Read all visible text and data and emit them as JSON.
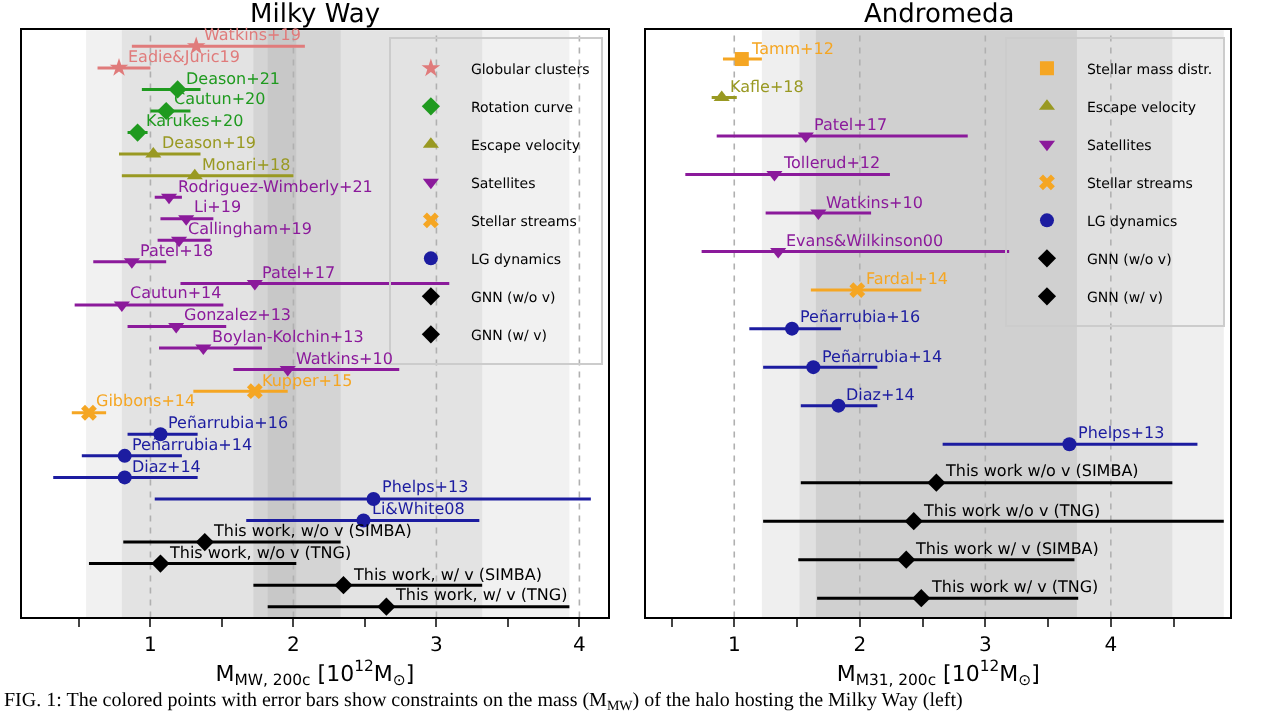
{
  "chart_data": [
    {
      "type": "scatter",
      "orientation": "horizontal",
      "title": "Milky Way",
      "xlabel": "M$_{MW, 200c}$ [10$^{12}$M$_{⊙}$]",
      "categories": [
        null,
        null,
        null,
        null,
        null,
        null,
        null,
        null,
        null,
        null,
        null,
        null,
        null,
        null,
        null,
        null,
        null,
        null,
        null,
        null,
        null,
        null,
        null,
        null,
        null,
        null,
        null
      ],
      "series": [
        {
          "name": "Globular clusters",
          "color": "#e07b7b",
          "marker": "star",
          "values": [
            1.32,
            0.78,
            null,
            null,
            null,
            null,
            null,
            null,
            null,
            null,
            null,
            null,
            null,
            null,
            null,
            null,
            null,
            null,
            null,
            null,
            null,
            null,
            null,
            null,
            null,
            null,
            null
          ],
          "errors": [
            [
              0.87,
              2.08
            ],
            [
              0.63,
              1.0
            ],
            null,
            null,
            null,
            null,
            null,
            null,
            null,
            null,
            null,
            null,
            null,
            null,
            null,
            null,
            null,
            null,
            null,
            null,
            null,
            null,
            null,
            null,
            null,
            null,
            null
          ]
        },
        {
          "name": "Rotation curve",
          "color": "#1f9a1f",
          "marker": "diamond",
          "values": [
            null,
            null,
            1.19,
            1.11,
            0.91,
            null,
            null,
            null,
            null,
            null,
            null,
            null,
            null,
            null,
            null,
            null,
            null,
            null,
            null,
            null,
            null,
            null,
            null,
            null,
            null,
            null,
            null
          ],
          "errors": [
            null,
            null,
            [
              0.94,
              1.35
            ],
            [
              1.0,
              1.28
            ],
            [
              0.84,
              0.98
            ],
            null,
            null,
            null,
            null,
            null,
            null,
            null,
            null,
            null,
            null,
            null,
            null,
            null,
            null,
            null,
            null,
            null,
            null,
            null,
            null,
            null,
            null
          ]
        },
        {
          "name": "Escape velocity",
          "color": "#999922",
          "marker": "triangle",
          "values": [
            null,
            null,
            null,
            null,
            null,
            1.02,
            1.31,
            null,
            null,
            null,
            null,
            null,
            null,
            null,
            null,
            null,
            null,
            null,
            null,
            null,
            null,
            null,
            null,
            null,
            null,
            null,
            null
          ],
          "errors": [
            null,
            null,
            null,
            null,
            null,
            [
              0.78,
              1.35
            ],
            [
              0.8,
              2.0
            ],
            null,
            null,
            null,
            null,
            null,
            null,
            null,
            null,
            null,
            null,
            null,
            null,
            null,
            null,
            null,
            null,
            null,
            null,
            null,
            null
          ]
        },
        {
          "name": "Satellites",
          "color": "#8b1a9b",
          "marker": "triangle-down",
          "values": [
            null,
            null,
            null,
            null,
            null,
            null,
            null,
            1.13,
            1.25,
            1.2,
            0.87,
            1.73,
            0.8,
            1.18,
            1.37,
            1.96,
            null,
            null,
            null,
            null,
            null,
            null,
            null,
            null,
            null,
            null,
            null
          ],
          "errors": [
            null,
            null,
            null,
            null,
            null,
            null,
            null,
            [
              1.03,
              1.22
            ],
            [
              1.07,
              1.44
            ],
            [
              1.05,
              1.42
            ],
            [
              0.6,
              1.11
            ],
            [
              1.21,
              3.09
            ],
            [
              0.47,
              1.51
            ],
            [
              0.84,
              1.53
            ],
            [
              1.06,
              1.78
            ],
            [
              1.58,
              2.74
            ],
            null,
            null,
            null,
            null,
            null,
            null,
            null,
            null,
            null,
            null,
            null
          ]
        },
        {
          "name": "Stellar streams",
          "color": "#f5a623",
          "marker": "cross",
          "values": [
            null,
            null,
            null,
            null,
            null,
            null,
            null,
            null,
            null,
            null,
            null,
            null,
            null,
            null,
            null,
            null,
            1.73,
            0.57,
            null,
            null,
            null,
            null,
            null,
            null,
            null,
            null,
            null
          ],
          "errors": [
            null,
            null,
            null,
            null,
            null,
            null,
            null,
            null,
            null,
            null,
            null,
            null,
            null,
            null,
            null,
            null,
            [
              1.3,
              1.96
            ],
            [
              0.45,
              0.69
            ],
            null,
            null,
            null,
            null,
            null,
            null,
            null,
            null,
            null
          ]
        },
        {
          "name": "LG dynamics",
          "color": "#1c1ca0",
          "marker": "circle",
          "values": [
            null,
            null,
            null,
            null,
            null,
            null,
            null,
            null,
            null,
            null,
            null,
            null,
            null,
            null,
            null,
            null,
            null,
            null,
            1.07,
            0.82,
            0.82,
            2.56,
            2.49,
            null,
            null,
            null,
            null
          ],
          "errors": [
            null,
            null,
            null,
            null,
            null,
            null,
            null,
            null,
            null,
            null,
            null,
            null,
            null,
            null,
            null,
            null,
            null,
            null,
            [
              0.84,
              1.33
            ],
            [
              0.52,
              1.22
            ],
            [
              0.32,
              1.33
            ],
            [
              1.03,
              4.08
            ],
            [
              1.67,
              3.3
            ],
            null,
            null,
            null,
            null
          ]
        },
        {
          "name": "GNN (w/o v)",
          "color": "#000000",
          "marker": "diamond",
          "values": [
            null,
            null,
            null,
            null,
            null,
            null,
            null,
            null,
            null,
            null,
            null,
            null,
            null,
            null,
            null,
            null,
            null,
            null,
            null,
            null,
            null,
            null,
            null,
            1.38,
            1.07,
            null,
            null
          ],
          "errors": [
            null,
            null,
            null,
            null,
            null,
            null,
            null,
            null,
            null,
            null,
            null,
            null,
            null,
            null,
            null,
            null,
            null,
            null,
            null,
            null,
            null,
            null,
            null,
            [
              0.81,
              2.33
            ],
            [
              0.57,
              2.02
            ],
            null,
            null
          ]
        },
        {
          "name": "GNN (w/ v)",
          "color": "#000000",
          "marker": "diamond",
          "values": [
            null,
            null,
            null,
            null,
            null,
            null,
            null,
            null,
            null,
            null,
            null,
            null,
            null,
            null,
            null,
            null,
            null,
            null,
            null,
            null,
            null,
            null,
            null,
            null,
            null,
            2.35,
            2.65
          ],
          "errors": [
            null,
            null,
            null,
            null,
            null,
            null,
            null,
            null,
            null,
            null,
            null,
            null,
            null,
            null,
            null,
            null,
            null,
            null,
            null,
            null,
            null,
            null,
            null,
            null,
            null,
            [
              1.72,
              3.32
            ],
            [
              1.82,
              3.93
            ]
          ]
        }
      ],
      "xlim": [
        0.1,
        4.2
      ],
      "xticks": [
        {
          "value": 0.5,
          "label": null
        },
        1,
        {
          "value": 1.5,
          "label": null
        },
        2,
        {
          "value": 2.5,
          "label": null
        },
        3,
        {
          "value": 3.5,
          "label": null
        },
        4
      ],
      "bands": [
        {
          "axis": "x",
          "from": 0.55,
          "to": 3.93,
          "color": "#f1f1f1"
        },
        {
          "axis": "x",
          "from": 0.8,
          "to": 3.32,
          "color": "#e3e3e3"
        },
        {
          "axis": "x",
          "from": 1.72,
          "to": 2.33,
          "color": "#d4d4d4"
        },
        {
          "axis": "x",
          "from": 1.82,
          "to": 2.02,
          "color": "#c8c8c8"
        }
      ],
      "grid": "x",
      "legend": "top right",
      "tick_labels": "x",
      "annotations": [
        {
          "text": "Watkins+19",
          "x": 1.32
        },
        {
          "text": "Eadie&Juric19",
          "x": 0.78
        },
        {
          "text": "Deason+21",
          "x": 1.19
        },
        {
          "text": "Cautun+20",
          "x": 1.11
        },
        {
          "text": "Karukes+20",
          "x": 0.91
        },
        {
          "text": "Deason+19",
          "x": 1.02
        },
        {
          "text": "Monari+18",
          "x": 1.31
        },
        {
          "text": "Rodriguez-Wimberly+21",
          "x": 1.13
        },
        {
          "text": "Li+19",
          "x": 1.25
        },
        {
          "text": "Callingham+19",
          "x": 1.2
        },
        {
          "text": "Patel+18",
          "x": 0.87
        },
        {
          "text": "Patel+17",
          "x": 1.73
        },
        {
          "text": "Cautun+14",
          "x": 0.8
        },
        {
          "text": "Gonzalez+13",
          "x": 1.18
        },
        {
          "text": "Boylan-Kolchin+13",
          "x": 1.37
        },
        {
          "text": "Watkins+10",
          "x": 1.96
        },
        {
          "text": "Kupper+15",
          "x": 1.73
        },
        {
          "text": "Gibbons+14",
          "x": 0.57
        },
        {
          "text": "Peñarrubia+16",
          "x": 1.07
        },
        {
          "text": "Peñarrubia+14",
          "x": 0.82
        },
        {
          "text": "Diaz+14",
          "x": 0.82
        },
        {
          "text": "Phelps+13",
          "x": 2.56
        },
        {
          "text": "Li&White08",
          "x": 2.49
        },
        {
          "text": "This work, w/o v (SIMBA)",
          "x": 1.38
        },
        {
          "text": "This work, w/o v (TNG)",
          "x": 1.07
        },
        {
          "text": "This work, w/ v (SIMBA)",
          "x": 2.35
        },
        {
          "text": "This work, w/ v (TNG)",
          "x": 2.65
        },
        "FIG. 1: The colored points with error bars show constraints on the mass (M$_{MW}$) of the halo hosting the Milky Way (left)"
      ]
    },
    {
      "type": "scatter",
      "orientation": "horizontal",
      "title": "Andromeda",
      "xlabel": "M$_{M31, 200c}$ [10$^{12}$M$_{⊙}$]",
      "categories": [
        null,
        null,
        null,
        null,
        null,
        null,
        null,
        null,
        null,
        null,
        null,
        null,
        null,
        null,
        null
      ],
      "series": [
        {
          "name": "Stellar mass distr.",
          "color": "#f5a623",
          "marker": "square",
          "values": [
            1.06,
            null,
            null,
            null,
            null,
            null,
            null,
            null,
            null,
            null,
            null,
            null,
            null,
            null,
            null
          ],
          "errors": [
            [
              0.91,
              1.22
            ],
            null,
            null,
            null,
            null,
            null,
            null,
            null,
            null,
            null,
            null,
            null,
            null,
            null,
            null
          ]
        },
        {
          "name": "Escape velocity",
          "color": "#999922",
          "marker": "triangle",
          "values": [
            null,
            0.9,
            null,
            null,
            null,
            null,
            null,
            null,
            null,
            null,
            null,
            null,
            null,
            null,
            null
          ],
          "errors": [
            null,
            [
              0.82,
              1.02
            ],
            null,
            null,
            null,
            null,
            null,
            null,
            null,
            null,
            null,
            null,
            null,
            null,
            null
          ]
        },
        {
          "name": "Satellites",
          "color": "#8b1a9b",
          "marker": "triangle-down",
          "values": [
            null,
            null,
            1.57,
            1.32,
            1.67,
            1.35,
            null,
            null,
            null,
            null,
            null,
            null,
            null,
            null,
            null
          ],
          "errors": [
            null,
            null,
            [
              0.86,
              2.86
            ],
            [
              0.61,
              2.24
            ],
            [
              1.25,
              2.09
            ],
            [
              0.74,
              3.19
            ],
            null,
            null,
            null,
            null,
            null,
            null,
            null,
            null,
            null
          ]
        },
        {
          "name": "Stellar streams",
          "color": "#f5a623",
          "marker": "cross",
          "values": [
            null,
            null,
            null,
            null,
            null,
            null,
            1.98,
            null,
            null,
            null,
            null,
            null,
            null,
            null,
            null
          ],
          "errors": [
            null,
            null,
            null,
            null,
            null,
            null,
            [
              1.61,
              2.49
            ],
            null,
            null,
            null,
            null,
            null,
            null,
            null,
            null
          ]
        },
        {
          "name": "LG dynamics",
          "color": "#1c1ca0",
          "marker": "circle",
          "values": [
            null,
            null,
            null,
            null,
            null,
            null,
            null,
            1.46,
            1.63,
            1.83,
            3.67,
            null,
            null,
            null,
            null
          ],
          "errors": [
            null,
            null,
            null,
            null,
            null,
            null,
            null,
            [
              1.12,
              1.85
            ],
            [
              1.23,
              2.14
            ],
            [
              1.53,
              2.14
            ],
            [
              2.66,
              4.69
            ],
            null,
            null,
            null,
            null
          ]
        },
        {
          "name": "GNN (w/o v)",
          "color": "#000000",
          "marker": "diamond",
          "values": [
            null,
            null,
            null,
            null,
            null,
            null,
            null,
            null,
            null,
            null,
            null,
            2.61,
            2.43,
            null,
            null
          ],
          "errors": [
            null,
            null,
            null,
            null,
            null,
            null,
            null,
            null,
            null,
            null,
            null,
            [
              1.53,
              4.49
            ],
            [
              1.23,
              4.9
            ],
            null,
            null
          ]
        },
        {
          "name": "GNN (w/ v)",
          "color": "#000000",
          "marker": "diamond",
          "values": [
            null,
            null,
            null,
            null,
            null,
            null,
            null,
            null,
            null,
            null,
            null,
            null,
            null,
            2.37,
            2.49
          ],
          "errors": [
            null,
            null,
            null,
            null,
            null,
            null,
            null,
            null,
            null,
            null,
            null,
            null,
            null,
            [
              1.51,
              3.71
            ],
            [
              1.66,
              3.74
            ]
          ]
        }
      ],
      "xlim": [
        0.3,
        4.95
      ],
      "xticks": [
        {
          "value": 0.5,
          "label": null
        },
        1,
        {
          "value": 1.5,
          "label": null
        },
        2,
        {
          "value": 2.5,
          "label": null
        },
        3,
        {
          "value": 3.5,
          "label": null
        },
        4,
        {
          "value": 4.5,
          "label": null
        }
      ],
      "bands": [
        {
          "axis": "x",
          "from": 1.22,
          "to": 4.9,
          "color": "#efefef"
        },
        {
          "axis": "x",
          "from": 1.52,
          "to": 4.49,
          "color": "#e0e0e0"
        },
        {
          "axis": "x",
          "from": 1.65,
          "to": 3.73,
          "color": "#d0d0d0"
        }
      ],
      "grid": "x",
      "legend": "top right",
      "tick_labels": "x",
      "annotations": [
        {
          "text": "Tamm+12",
          "x": 1.06
        },
        {
          "text": "Kafle+18",
          "x": 0.9
        },
        {
          "text": "Patel+17",
          "x": 1.57
        },
        {
          "text": "Tollerud+12",
          "x": 1.32
        },
        {
          "text": "Watkins+10",
          "x": 1.67
        },
        {
          "text": "Evans&Wilkinson00",
          "x": 1.35
        },
        {
          "text": "Fardal+14",
          "x": 1.98
        },
        {
          "text": "Peñarrubia+16",
          "x": 1.46
        },
        {
          "text": "Peñarrubia+14",
          "x": 1.63
        },
        {
          "text": "Diaz+14",
          "x": 1.83
        },
        {
          "text": "Phelps+13",
          "x": 3.67
        },
        {
          "text": "This work w/o v (SIMBA)",
          "x": 2.61
        },
        {
          "text": "This work w/o v (TNG)",
          "x": 2.43
        },
        {
          "text": "This work w/ v (SIMBA)",
          "x": 2.37
        },
        {
          "text": "This work w/ v (TNG)",
          "x": 2.49
        }
      ]
    }
  ]
}
